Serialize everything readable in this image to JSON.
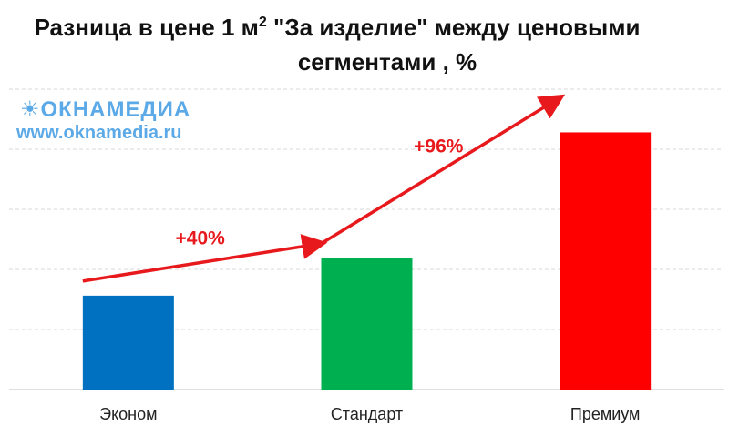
{
  "title": {
    "line1_prefix": "Разница в цене 1 м",
    "line1_sup": "2",
    "line1_suffix": " \"За изделие\" между ценовыми",
    "line2": "сегментами , %"
  },
  "watermark": {
    "logo": "ОКНАМЕДИА",
    "url": "www.oknamedia.ru",
    "color": "#5ba9e6",
    "icon": "sun-icon"
  },
  "chart_data": {
    "type": "bar",
    "categories": [
      "Эконом",
      "Стандарт",
      "Премиум"
    ],
    "values": [
      100,
      140,
      274
    ],
    "colors": [
      "#0070c0",
      "#00b050",
      "#ff0000"
    ],
    "ylim": [
      0,
      320
    ],
    "grid": true,
    "legend": "none",
    "annotations": [
      {
        "text": "+40%",
        "from": "Эконом",
        "to": "Стандарт"
      },
      {
        "text": "+96%",
        "from": "Стандарт",
        "to": "Премиум"
      }
    ],
    "annotation_color": "#e8191c"
  }
}
